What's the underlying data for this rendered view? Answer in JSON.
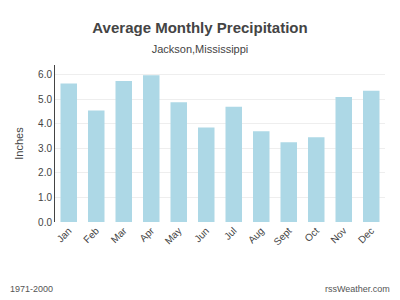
{
  "chart_data": {
    "type": "bar",
    "title": "Average Monthly Precipitation",
    "subtitle": "Jackson,Mississippi",
    "ylabel": "Inches",
    "categories": [
      "Jan",
      "Feb",
      "Mar",
      "Apr",
      "May",
      "Jun",
      "Jul",
      "Aug",
      "Sept",
      "Oct",
      "Nov",
      "Dec"
    ],
    "values": [
      5.65,
      4.55,
      5.75,
      5.98,
      4.88,
      3.85,
      4.7,
      3.7,
      3.25,
      3.45,
      5.1,
      5.35
    ],
    "color": "#add8e6",
    "ylim": [
      0.0,
      6.4
    ],
    "yticks": [
      {
        "value": 0,
        "label": "0.0"
      },
      {
        "value": 1,
        "label": "1.0"
      },
      {
        "value": 2,
        "label": "2.0"
      },
      {
        "value": 3,
        "label": "3.0"
      },
      {
        "value": 4,
        "label": "4.0"
      },
      {
        "value": 5,
        "label": "5.0"
      },
      {
        "value": 6,
        "label": "6.0"
      }
    ],
    "grid": true,
    "annotations": [
      "1971-2000",
      "rssWeather.com"
    ]
  }
}
